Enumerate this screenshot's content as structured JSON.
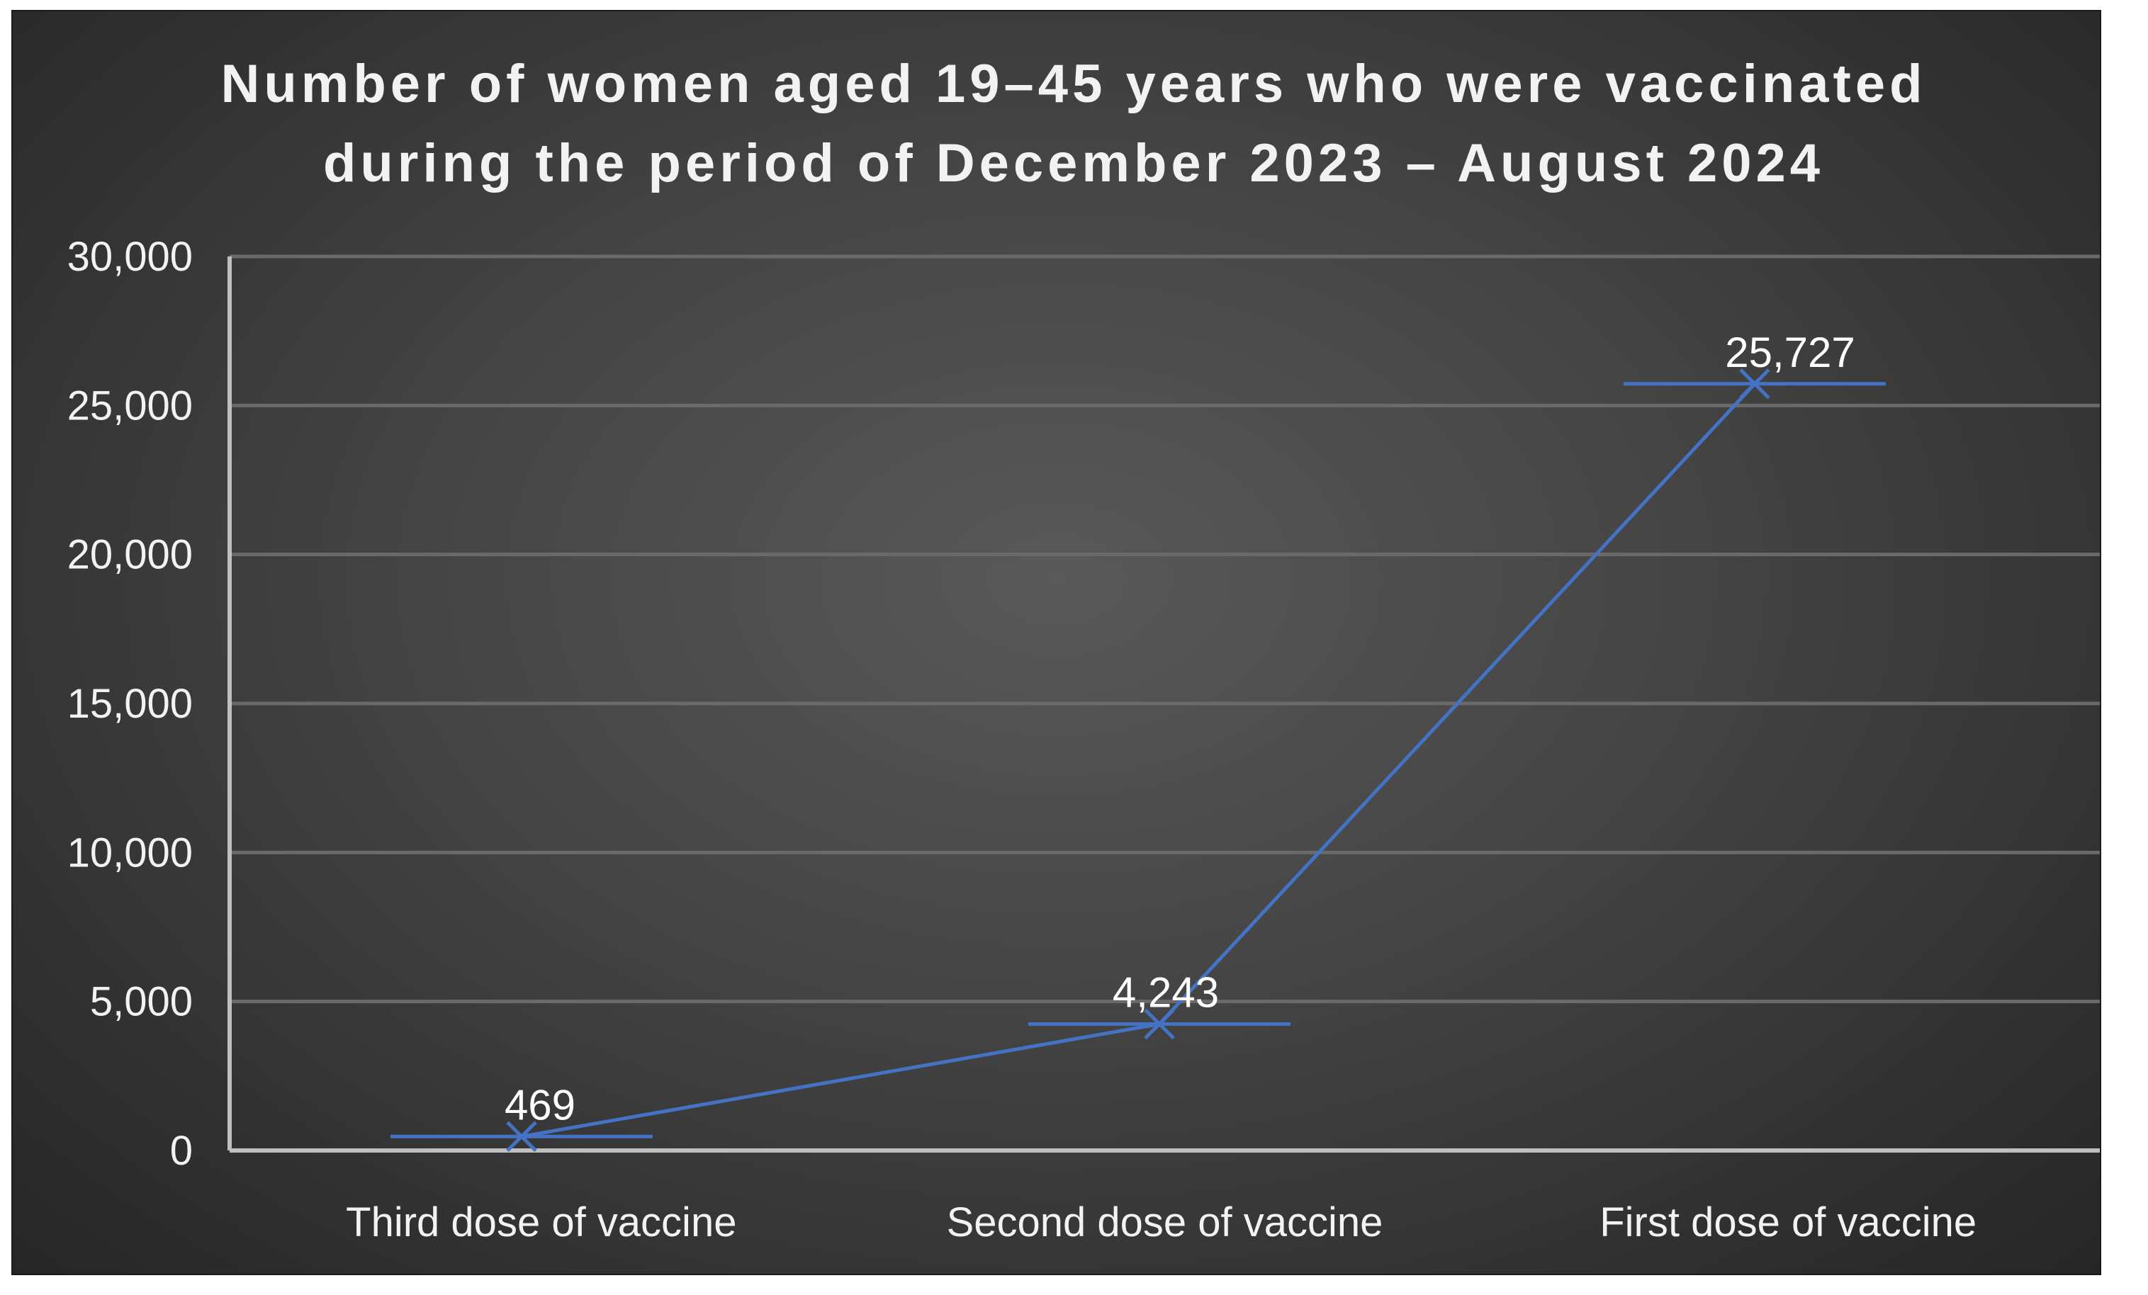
{
  "chart_data": {
    "type": "line",
    "title_lines": [
      "Number of women aged 19–45 years who were vaccinated",
      "during the period of December 2023 – August 2024"
    ],
    "categories": [
      "Third dose of vaccine",
      "Second dose of vaccine",
      "First dose of vaccine"
    ],
    "values": [
      469,
      4243,
      25727
    ],
    "data_labels": [
      "469",
      "4,243",
      "25,727"
    ],
    "y_ticks": [
      0,
      5000,
      10000,
      15000,
      20000,
      25000,
      30000
    ],
    "y_tick_labels": [
      "0",
      "5,000",
      "10,000",
      "15,000",
      "20,000",
      "25,000",
      "30,000"
    ],
    "ylim": [
      0,
      30000
    ],
    "grid": true,
    "marker": "x-with-horizontal-bar",
    "colors": {
      "line": "#4472c4",
      "grid": "#6a6a6a",
      "axis": "#bfbfbf",
      "text": "#f2f2f2"
    }
  }
}
